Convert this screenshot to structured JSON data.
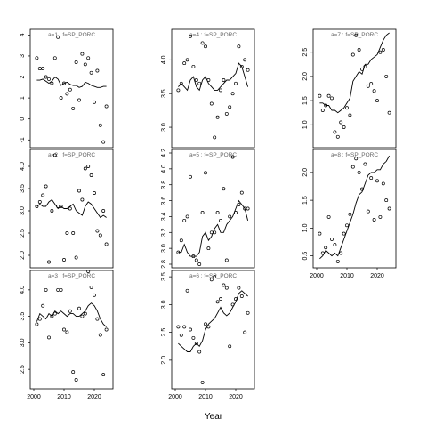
{
  "chart_data": {
    "type": "scatter",
    "xlabel": "Year",
    "ylabel": "",
    "xticks": [
      2000,
      2010,
      2020
    ],
    "xlim": [
      2000,
      2025
    ],
    "panels": [
      {
        "label": "a=1 : f=SP_PORC",
        "ylim": [
          -1.2,
          4.1
        ],
        "yticks": [
          -1,
          0,
          1,
          2,
          3,
          4
        ],
        "x": [
          2001,
          2002,
          2003,
          2004,
          2005,
          2006,
          2007,
          2008,
          2009,
          2010,
          2011,
          2012,
          2013,
          2014,
          2015,
          2016,
          2017,
          2018,
          2019,
          2020,
          2021,
          2022,
          2023,
          2024
        ],
        "points": [
          2.9,
          2.4,
          2.4,
          2.0,
          1.9,
          1.7,
          2.9,
          3.9,
          1.0,
          1.7,
          1.2,
          1.4,
          0.5,
          2.7,
          0.9,
          3.1,
          2.6,
          2.9,
          2.2,
          0.8,
          2.3,
          -0.3,
          -1.1,
          0.6
        ],
        "fit": [
          1.85,
          1.85,
          1.9,
          1.8,
          1.7,
          1.8,
          2.0,
          1.9,
          1.6,
          1.7,
          1.75,
          1.65,
          1.6,
          1.6,
          1.5,
          1.55,
          1.75,
          1.7,
          1.6,
          1.55,
          1.5,
          1.5,
          1.55,
          1.55
        ]
      },
      {
        "label": "a=2 : f=SP_PORC",
        "ylim": [
          1.8,
          4.3
        ],
        "yticks": [
          2.0,
          2.5,
          3.0,
          3.5,
          4.0
        ],
        "x": [
          2001,
          2002,
          2003,
          2004,
          2005,
          2006,
          2007,
          2008,
          2009,
          2010,
          2011,
          2012,
          2013,
          2014,
          2015,
          2016,
          2017,
          2018,
          2019,
          2020,
          2021,
          2022,
          2023,
          2024
        ],
        "points": [
          3.1,
          3.2,
          3.35,
          3.55,
          1.85,
          3.0,
          4.25,
          3.1,
          3.1,
          1.9,
          2.5,
          3.05,
          2.5,
          1.95,
          3.45,
          3.25,
          3.95,
          4.0,
          3.8,
          3.4,
          2.55,
          2.45,
          3.0,
          2.25
        ],
        "fit": [
          3.1,
          3.15,
          3.1,
          3.1,
          3.2,
          3.25,
          3.15,
          3.05,
          3.1,
          3.05,
          3.05,
          3.1,
          3.15,
          3.0,
          2.95,
          2.9,
          3.1,
          3.2,
          3.15,
          3.05,
          2.95,
          2.85,
          2.9,
          2.85
        ]
      },
      {
        "label": "a=3 : f=SP_PORC",
        "ylim": [
          2.2,
          4.3
        ],
        "yticks": [
          2.5,
          3.0,
          3.5,
          4.0
        ],
        "x": [
          2001,
          2002,
          2003,
          2004,
          2005,
          2006,
          2007,
          2008,
          2009,
          2010,
          2011,
          2012,
          2013,
          2014,
          2015,
          2016,
          2017,
          2018,
          2019,
          2020,
          2021,
          2022,
          2023,
          2024
        ],
        "points": [
          3.35,
          3.45,
          3.7,
          4.0,
          3.1,
          3.5,
          3.55,
          4.0,
          4.0,
          3.25,
          3.2,
          3.6,
          2.45,
          2.3,
          3.65,
          3.5,
          3.55,
          4.35,
          4.05,
          3.9,
          3.45,
          3.15,
          2.4,
          3.25
        ],
        "fit": [
          3.4,
          3.55,
          3.5,
          3.45,
          3.55,
          3.5,
          3.6,
          3.55,
          3.6,
          3.55,
          3.5,
          3.55,
          3.55,
          3.5,
          3.5,
          3.55,
          3.6,
          3.7,
          3.75,
          3.7,
          3.6,
          3.45,
          3.35,
          3.3
        ]
      },
      {
        "label": "a=4 : f=SP_PORC",
        "ylim": [
          2.75,
          4.4
        ],
        "yticks": [
          3.0,
          3.5,
          4.0
        ],
        "x": [
          2001,
          2002,
          2003,
          2004,
          2005,
          2006,
          2007,
          2008,
          2009,
          2010,
          2011,
          2012,
          2013,
          2014,
          2015,
          2016,
          2017,
          2018,
          2019,
          2020,
          2021,
          2022,
          2023,
          2024
        ],
        "points": [
          3.55,
          3.65,
          3.95,
          4.0,
          4.35,
          3.9,
          3.7,
          3.65,
          4.25,
          4.2,
          3.7,
          3.35,
          2.85,
          3.15,
          3.55,
          3.7,
          3.2,
          3.3,
          3.5,
          3.65,
          4.2,
          3.9,
          4.0,
          3.85
        ],
        "fit": [
          3.6,
          3.65,
          3.6,
          3.55,
          3.7,
          3.75,
          3.6,
          3.55,
          3.7,
          3.75,
          3.65,
          3.6,
          3.55,
          3.55,
          3.6,
          3.65,
          3.7,
          3.7,
          3.75,
          3.8,
          3.95,
          3.9,
          3.75,
          3.6
        ]
      },
      {
        "label": "a=5 : f=SP_PORC",
        "ylim": [
          2.8,
          4.2
        ],
        "yticks": [
          2.8,
          3.0,
          3.2,
          3.4,
          3.6,
          3.8,
          4.0,
          4.2
        ],
        "x": [
          2001,
          2002,
          2003,
          2004,
          2005,
          2006,
          2007,
          2008,
          2009,
          2010,
          2011,
          2012,
          2013,
          2014,
          2015,
          2016,
          2017,
          2018,
          2019,
          2020,
          2021,
          2022,
          2023,
          2024
        ],
        "points": [
          2.95,
          3.1,
          3.35,
          3.4,
          3.9,
          2.9,
          2.85,
          2.8,
          3.45,
          3.95,
          3.0,
          3.2,
          3.2,
          3.45,
          3.35,
          3.75,
          2.85,
          3.4,
          4.15,
          3.45,
          3.55,
          3.7,
          3.5,
          3.5
        ],
        "fit": [
          2.95,
          2.95,
          3.05,
          2.95,
          2.9,
          2.9,
          2.9,
          2.95,
          3.15,
          3.2,
          3.1,
          3.15,
          3.25,
          3.3,
          3.2,
          3.2,
          3.3,
          3.35,
          3.4,
          3.5,
          3.6,
          3.55,
          3.5,
          3.35
        ]
      },
      {
        "label": "a=6 : f=SP_PORC",
        "ylim": [
          1.55,
          3.55
        ],
        "yticks": [
          2.0,
          2.5,
          3.0,
          3.5
        ],
        "x": [
          2001,
          2002,
          2003,
          2004,
          2005,
          2006,
          2007,
          2008,
          2009,
          2010,
          2011,
          2012,
          2013,
          2014,
          2015,
          2016,
          2017,
          2018,
          2019,
          2020,
          2021,
          2022,
          2023,
          2024
        ],
        "points": [
          2.6,
          2.45,
          2.6,
          3.25,
          2.55,
          2.4,
          2.3,
          2.15,
          1.6,
          2.65,
          2.6,
          3.45,
          3.5,
          3.05,
          3.1,
          3.35,
          3.3,
          2.25,
          3.0,
          3.1,
          3.3,
          3.15,
          2.5,
          2.85
        ],
        "fit": [
          2.3,
          2.25,
          2.2,
          2.15,
          2.15,
          2.25,
          2.3,
          2.25,
          2.35,
          2.55,
          2.65,
          2.7,
          2.75,
          2.85,
          2.95,
          2.85,
          2.8,
          2.85,
          2.95,
          3.05,
          3.2,
          3.25,
          3.2,
          3.15
        ]
      },
      {
        "label": "a=7 : f=SP_PORC",
        "ylim": [
          0.6,
          2.9
        ],
        "yticks": [
          1.0,
          1.5,
          2.0,
          2.5
        ],
        "x": [
          2001,
          2002,
          2003,
          2004,
          2005,
          2006,
          2007,
          2008,
          2009,
          2010,
          2011,
          2012,
          2013,
          2014,
          2015,
          2016,
          2017,
          2018,
          2019,
          2020,
          2021,
          2022,
          2023,
          2024
        ],
        "points": [
          1.6,
          1.3,
          1.4,
          1.6,
          1.55,
          0.85,
          0.75,
          1.05,
          0.95,
          1.35,
          1.2,
          2.45,
          2.85,
          2.55,
          2.15,
          2.2,
          1.8,
          1.85,
          1.7,
          1.5,
          2.5,
          2.55,
          2.0,
          1.25
        ],
        "fit": [
          1.45,
          1.45,
          1.4,
          1.4,
          1.3,
          1.3,
          1.25,
          1.3,
          1.35,
          1.45,
          1.55,
          1.9,
          2.0,
          2.1,
          2.05,
          2.25,
          2.25,
          2.35,
          2.4,
          2.45,
          2.6,
          2.75,
          2.85,
          2.9
        ]
      },
      {
        "label": "a=8 : f=SP_PORC",
        "ylim": [
          0.35,
          2.35
        ],
        "yticks": [
          0.5,
          1.0,
          1.5,
          2.0
        ],
        "x": [
          2001,
          2002,
          2003,
          2004,
          2005,
          2006,
          2007,
          2008,
          2009,
          2010,
          2011,
          2012,
          2013,
          2014,
          2015,
          2016,
          2017,
          2018,
          2019,
          2020,
          2021,
          2022,
          2023,
          2024
        ],
        "points": [
          0.9,
          0.55,
          0.65,
          1.2,
          0.8,
          0.7,
          0.4,
          0.55,
          0.9,
          1.05,
          1.25,
          2.1,
          2.25,
          2.0,
          1.7,
          2.15,
          1.3,
          1.9,
          1.15,
          1.85,
          1.2,
          1.8,
          1.5,
          1.35
        ],
        "fit": [
          0.45,
          0.5,
          0.6,
          0.55,
          0.5,
          0.55,
          0.5,
          0.65,
          0.8,
          0.95,
          1.1,
          1.25,
          1.45,
          1.6,
          1.65,
          1.8,
          1.95,
          2.0,
          2.0,
          2.05,
          2.05,
          2.15,
          2.2,
          2.3
        ]
      }
    ]
  }
}
